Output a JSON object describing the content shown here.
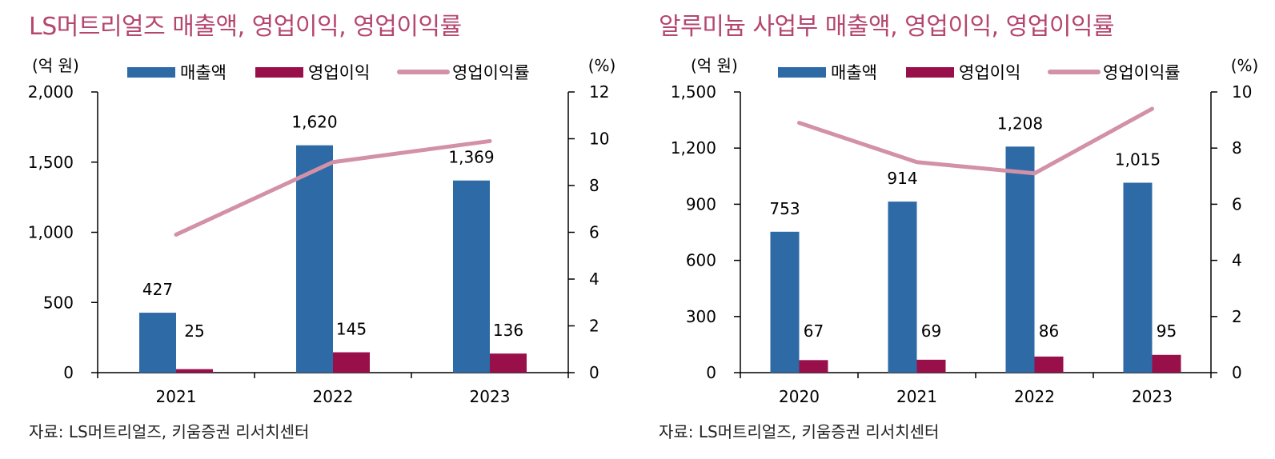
{
  "colors": {
    "title": "#b5466e",
    "revenue": "#2e6aa6",
    "op_income": "#990f4a",
    "margin": "#d291a8",
    "axis": "#000000",
    "text": "#000000"
  },
  "chart_data": [
    {
      "type": "bar",
      "title": "LS머트리얼즈 매출액, 영업이익, 영업이익률",
      "ylabel": "(억 원)",
      "y2label": "(%)",
      "categories": [
        "2021",
        "2022",
        "2023"
      ],
      "ylim": [
        0,
        2000
      ],
      "yticks": [
        "0",
        "500",
        "1,000",
        "1,500",
        "2,000"
      ],
      "y2lim": [
        0,
        12
      ],
      "y2ticks": [
        "0",
        "2",
        "4",
        "6",
        "8",
        "10",
        "12"
      ],
      "legend": [
        "매출액",
        "영업이익",
        "영업이익률"
      ],
      "series": [
        {
          "name": "매출액",
          "type": "bar",
          "values": [
            427,
            1620,
            1369
          ],
          "labels": [
            "427",
            "1,620",
            "1,369"
          ]
        },
        {
          "name": "영업이익",
          "type": "bar",
          "values": [
            25,
            145,
            136
          ],
          "labels": [
            "25",
            "145",
            "136"
          ]
        },
        {
          "name": "영업이익률",
          "type": "line",
          "axis": "secondary",
          "values": [
            5.9,
            9.0,
            9.9
          ]
        }
      ],
      "source": "자료: LS머트리얼즈, 키움증권 리서치센터"
    },
    {
      "type": "bar",
      "title": "알루미늄 사업부 매출액, 영업이익, 영업이익률",
      "ylabel": "(억 원)",
      "y2label": "(%)",
      "categories": [
        "2020",
        "2021",
        "2022",
        "2023"
      ],
      "ylim": [
        0,
        1500
      ],
      "yticks": [
        "0",
        "300",
        "600",
        "900",
        "1,200",
        "1,500"
      ],
      "y2lim": [
        0,
        10
      ],
      "y2ticks": [
        "0",
        "2",
        "4",
        "6",
        "8",
        "10"
      ],
      "legend": [
        "매출액",
        "영업이익",
        "영업이익률"
      ],
      "series": [
        {
          "name": "매출액",
          "type": "bar",
          "values": [
            753,
            914,
            1208,
            1015
          ],
          "labels": [
            "753",
            "914",
            "1,208",
            "1,015"
          ]
        },
        {
          "name": "영업이익",
          "type": "bar",
          "values": [
            67,
            69,
            86,
            95
          ],
          "labels": [
            "67",
            "69",
            "86",
            "95"
          ]
        },
        {
          "name": "영업이익률",
          "type": "line",
          "axis": "secondary",
          "values": [
            8.9,
            7.5,
            7.1,
            9.4
          ]
        }
      ],
      "source": "자료: LS머트리얼즈, 키움증권 리서치센터"
    }
  ]
}
